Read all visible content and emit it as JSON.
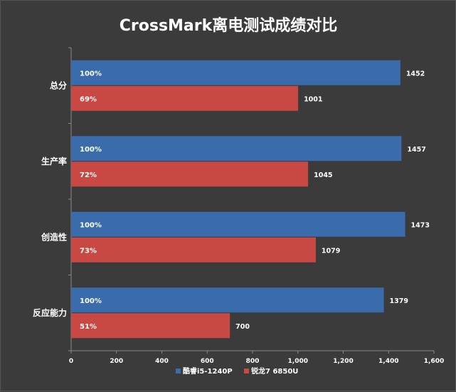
{
  "chart_data": {
    "type": "bar",
    "orientation": "horizontal",
    "title": "CrossMark离电测试成绩对比",
    "categories": [
      "总分",
      "生产率",
      "创造性",
      "反应能力"
    ],
    "series": [
      {
        "name": "酷睿i5-1240P",
        "color": "#3a6baa",
        "values": [
          1452,
          1457,
          1473,
          1379
        ],
        "percent_labels": [
          "100%",
          "100%",
          "100%",
          "100%"
        ]
      },
      {
        "name": "锐龙7 6850U",
        "color": "#c84844",
        "values": [
          1001,
          1045,
          1079,
          700
        ],
        "percent_labels": [
          "69%",
          "72%",
          "73%",
          "51%"
        ]
      }
    ],
    "xlim": [
      0,
      1600
    ],
    "xticks": [
      0,
      200,
      400,
      600,
      800,
      1000,
      1200,
      1400,
      1600
    ],
    "xtick_labels": [
      "0",
      "200",
      "400",
      "600",
      "800",
      "1,000",
      "1,200",
      "1,400",
      "1,600"
    ],
    "grid": false,
    "legend_position": "bottom"
  }
}
